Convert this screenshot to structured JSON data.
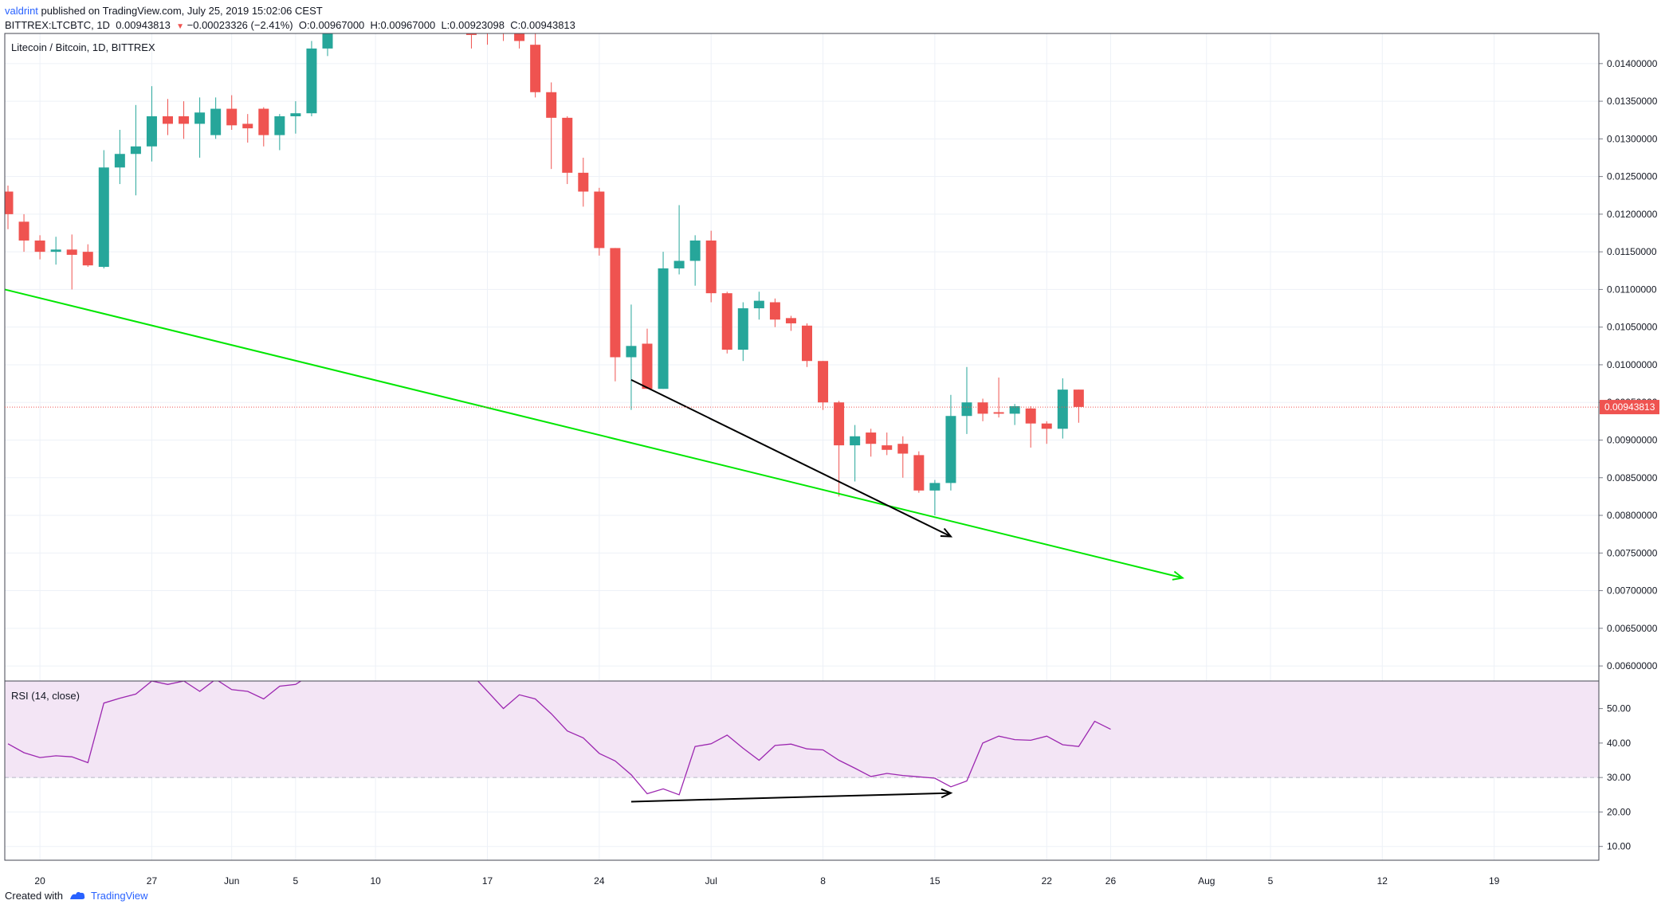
{
  "header": {
    "author": "valdrint",
    "published": "published on TradingView.com, July 25, 2019 15:02:06 CEST",
    "symbol": "BITTREX:LTCBTC, 1D",
    "last_price": "0.00943813",
    "change_icon": "down-triangle-icon",
    "change": "−0.00023326 (−2.41%)",
    "ohlc_o": "O:0.00967000",
    "ohlc_h": "H:0.00967000",
    "ohlc_l": "L:0.00923098",
    "ohlc_c": "C:0.00943813"
  },
  "footer": {
    "created_with": "Created with",
    "brand": "TradingView"
  },
  "colors": {
    "up": "#26a69a",
    "down": "#ef5350",
    "trendline": "#00e600",
    "arrow": "#000000",
    "rsi_line": "#9c27b0",
    "rsi_band": "#f3e5f5",
    "grid": "#edf1f7",
    "price_line": "#ef5350"
  },
  "chart_data": [
    {
      "type": "candlestick",
      "title": "Litecoin / Bitcoin, 1D, BITTREX",
      "ylim": [
        0.0058,
        0.0144
      ],
      "y_ticks": [
        "0.01400000",
        "0.01350000",
        "0.01300000",
        "0.01250000",
        "0.01200000",
        "0.01150000",
        "0.01100000",
        "0.01050000",
        "0.01000000",
        "0.00950000",
        "0.00900000",
        "0.00850000",
        "0.00800000",
        "0.00750000",
        "0.00700000",
        "0.00650000",
        "0.00600000"
      ],
      "x_ticks": [
        "20",
        "27",
        "Jun",
        "5",
        "10",
        "17",
        "24",
        "Jul",
        "8",
        "15",
        "22",
        "26",
        "Aug",
        "5",
        "12",
        "19"
      ],
      "last_price_label": "0.00943813",
      "candles": [
        {
          "date": "2019-05-18",
          "o": 0.0123,
          "h": 0.01238,
          "l": 0.0118,
          "c": 0.012
        },
        {
          "date": "2019-05-19",
          "o": 0.0119,
          "h": 0.012,
          "l": 0.0115,
          "c": 0.01165
        },
        {
          "date": "2019-05-20",
          "o": 0.01165,
          "h": 0.01172,
          "l": 0.0114,
          "c": 0.0115
        },
        {
          "date": "2019-05-21",
          "o": 0.0115,
          "h": 0.0117,
          "l": 0.01133,
          "c": 0.01153
        },
        {
          "date": "2019-05-22",
          "o": 0.01153,
          "h": 0.01173,
          "l": 0.011,
          "c": 0.01146
        },
        {
          "date": "2019-05-23",
          "o": 0.0115,
          "h": 0.0116,
          "l": 0.0113,
          "c": 0.01132
        },
        {
          "date": "2019-05-24",
          "o": 0.0113,
          "h": 0.01285,
          "l": 0.01128,
          "c": 0.01262
        },
        {
          "date": "2019-05-25",
          "o": 0.01262,
          "h": 0.01312,
          "l": 0.0124,
          "c": 0.0128
        },
        {
          "date": "2019-05-26",
          "o": 0.0128,
          "h": 0.01345,
          "l": 0.01225,
          "c": 0.0129
        },
        {
          "date": "2019-05-27",
          "o": 0.0129,
          "h": 0.0137,
          "l": 0.0127,
          "c": 0.0133
        },
        {
          "date": "2019-05-28",
          "o": 0.0133,
          "h": 0.01353,
          "l": 0.01305,
          "c": 0.0132
        },
        {
          "date": "2019-05-29",
          "o": 0.0133,
          "h": 0.0135,
          "l": 0.013,
          "c": 0.0132
        },
        {
          "date": "2019-05-30",
          "o": 0.0132,
          "h": 0.01355,
          "l": 0.01275,
          "c": 0.01335
        },
        {
          "date": "2019-05-31",
          "o": 0.01305,
          "h": 0.01355,
          "l": 0.013,
          "c": 0.0134
        },
        {
          "date": "2019-06-01",
          "o": 0.0134,
          "h": 0.01358,
          "l": 0.01312,
          "c": 0.01318
        },
        {
          "date": "2019-06-02",
          "o": 0.0132,
          "h": 0.01333,
          "l": 0.01295,
          "c": 0.01314
        },
        {
          "date": "2019-06-03",
          "o": 0.0134,
          "h": 0.01342,
          "l": 0.0129,
          "c": 0.01305
        },
        {
          "date": "2019-06-04",
          "o": 0.01305,
          "h": 0.01333,
          "l": 0.01285,
          "c": 0.0133
        },
        {
          "date": "2019-06-05",
          "o": 0.0133,
          "h": 0.0135,
          "l": 0.01307,
          "c": 0.01334
        },
        {
          "date": "2019-06-06",
          "o": 0.01334,
          "h": 0.0143,
          "l": 0.0133,
          "c": 0.0142
        },
        {
          "date": "2019-06-07",
          "o": 0.0142,
          "h": 0.01445,
          "l": 0.0141,
          "c": 0.01445
        },
        {
          "date": "2019-06-16",
          "o": 0.01445,
          "h": 0.01445,
          "l": 0.0142,
          "c": 0.01438
        },
        {
          "date": "2019-06-17",
          "o": 0.01445,
          "h": 0.01445,
          "l": 0.01425,
          "c": 0.0144
        },
        {
          "date": "2019-06-18",
          "o": 0.01445,
          "h": 0.01445,
          "l": 0.0143,
          "c": 0.0144
        },
        {
          "date": "2019-06-19",
          "o": 0.01445,
          "h": 0.01445,
          "l": 0.0142,
          "c": 0.0143
        },
        {
          "date": "2019-06-20",
          "o": 0.01425,
          "h": 0.0144,
          "l": 0.01355,
          "c": 0.01362
        },
        {
          "date": "2019-06-21",
          "o": 0.01362,
          "h": 0.01375,
          "l": 0.0126,
          "c": 0.01328
        },
        {
          "date": "2019-06-22",
          "o": 0.01328,
          "h": 0.0133,
          "l": 0.0124,
          "c": 0.01255
        },
        {
          "date": "2019-06-23",
          "o": 0.01255,
          "h": 0.01275,
          "l": 0.0121,
          "c": 0.0123
        },
        {
          "date": "2019-06-24",
          "o": 0.0123,
          "h": 0.01235,
          "l": 0.01145,
          "c": 0.01155
        },
        {
          "date": "2019-06-25",
          "o": 0.01155,
          "h": 0.01155,
          "l": 0.00978,
          "c": 0.0101
        },
        {
          "date": "2019-06-26",
          "o": 0.0101,
          "h": 0.0108,
          "l": 0.0094,
          "c": 0.01025
        },
        {
          "date": "2019-06-27",
          "o": 0.01028,
          "h": 0.01048,
          "l": 0.00968,
          "c": 0.00968
        },
        {
          "date": "2019-06-28",
          "o": 0.00968,
          "h": 0.0115,
          "l": 0.00968,
          "c": 0.01128
        },
        {
          "date": "2019-06-29",
          "o": 0.01128,
          "h": 0.01212,
          "l": 0.0112,
          "c": 0.01138
        },
        {
          "date": "2019-06-30",
          "o": 0.01138,
          "h": 0.01172,
          "l": 0.01105,
          "c": 0.01165
        },
        {
          "date": "2019-07-01",
          "o": 0.01165,
          "h": 0.01178,
          "l": 0.01083,
          "c": 0.01095
        },
        {
          "date": "2019-07-02",
          "o": 0.01095,
          "h": 0.01097,
          "l": 0.01015,
          "c": 0.0102
        },
        {
          "date": "2019-07-03",
          "o": 0.0102,
          "h": 0.01083,
          "l": 0.01005,
          "c": 0.01075
        },
        {
          "date": "2019-07-04",
          "o": 0.01075,
          "h": 0.01097,
          "l": 0.0106,
          "c": 0.01085
        },
        {
          "date": "2019-07-05",
          "o": 0.01083,
          "h": 0.01088,
          "l": 0.0105,
          "c": 0.0106
        },
        {
          "date": "2019-07-06",
          "o": 0.01062,
          "h": 0.01065,
          "l": 0.01045,
          "c": 0.01055
        },
        {
          "date": "2019-07-07",
          "o": 0.01052,
          "h": 0.01055,
          "l": 0.00997,
          "c": 0.01005
        },
        {
          "date": "2019-07-08",
          "o": 0.01005,
          "h": 0.01005,
          "l": 0.0094,
          "c": 0.0095
        },
        {
          "date": "2019-07-09",
          "o": 0.0095,
          "h": 0.00952,
          "l": 0.00825,
          "c": 0.00893
        },
        {
          "date": "2019-07-10",
          "o": 0.00893,
          "h": 0.0092,
          "l": 0.00845,
          "c": 0.00905
        },
        {
          "date": "2019-07-11",
          "o": 0.0091,
          "h": 0.00915,
          "l": 0.00878,
          "c": 0.00895
        },
        {
          "date": "2019-07-12",
          "o": 0.00893,
          "h": 0.0091,
          "l": 0.0088,
          "c": 0.00887
        },
        {
          "date": "2019-07-13",
          "o": 0.00895,
          "h": 0.00905,
          "l": 0.0085,
          "c": 0.00882
        },
        {
          "date": "2019-07-14",
          "o": 0.0088,
          "h": 0.00885,
          "l": 0.0083,
          "c": 0.00833
        },
        {
          "date": "2019-07-15",
          "o": 0.00833,
          "h": 0.00847,
          "l": 0.008,
          "c": 0.00843
        },
        {
          "date": "2019-07-16",
          "o": 0.00843,
          "h": 0.0096,
          "l": 0.00833,
          "c": 0.00932
        },
        {
          "date": "2019-07-17",
          "o": 0.00932,
          "h": 0.00997,
          "l": 0.00908,
          "c": 0.0095
        },
        {
          "date": "2019-07-18",
          "o": 0.0095,
          "h": 0.00955,
          "l": 0.00925,
          "c": 0.00935
        },
        {
          "date": "2019-07-19",
          "o": 0.00937,
          "h": 0.00983,
          "l": 0.0093,
          "c": 0.00935
        },
        {
          "date": "2019-07-20",
          "o": 0.00935,
          "h": 0.00948,
          "l": 0.0092,
          "c": 0.00945
        },
        {
          "date": "2019-07-21",
          "o": 0.00942,
          "h": 0.00945,
          "l": 0.0089,
          "c": 0.00922
        },
        {
          "date": "2019-07-22",
          "o": 0.00922,
          "h": 0.00925,
          "l": 0.00895,
          "c": 0.00915
        },
        {
          "date": "2019-07-23",
          "o": 0.00915,
          "h": 0.00982,
          "l": 0.00902,
          "c": 0.00967
        },
        {
          "date": "2019-07-24",
          "o": 0.00967,
          "h": 0.00967,
          "l": 0.00923,
          "c": 0.00944
        }
      ]
    },
    {
      "type": "line",
      "title": "RSI (14, close)",
      "ylim": [
        6,
        58
      ],
      "band": [
        30,
        70
      ],
      "y_ticks": [
        "50.00",
        "40.00",
        "30.00",
        "20.00",
        "10.00"
      ],
      "points": [
        {
          "date": "2019-05-18",
          "v": 39.8
        },
        {
          "date": "2019-05-19",
          "v": 37.2
        },
        {
          "date": "2019-05-20",
          "v": 35.8
        },
        {
          "date": "2019-05-21",
          "v": 36.3
        },
        {
          "date": "2019-05-22",
          "v": 36.0
        },
        {
          "date": "2019-05-23",
          "v": 34.3
        },
        {
          "date": "2019-05-24",
          "v": 51.6
        },
        {
          "date": "2019-05-25",
          "v": 53.0
        },
        {
          "date": "2019-05-26",
          "v": 54.2
        },
        {
          "date": "2019-05-27",
          "v": 58.0
        },
        {
          "date": "2019-05-28",
          "v": 57.0
        },
        {
          "date": "2019-05-29",
          "v": 58.0
        },
        {
          "date": "2019-05-30",
          "v": 55.0
        },
        {
          "date": "2019-05-31",
          "v": 58.5
        },
        {
          "date": "2019-06-01",
          "v": 55.5
        },
        {
          "date": "2019-06-02",
          "v": 55.0
        },
        {
          "date": "2019-06-03",
          "v": 52.8
        },
        {
          "date": "2019-06-04",
          "v": 56.5
        },
        {
          "date": "2019-06-05",
          "v": 57.0
        },
        {
          "date": "2019-06-06",
          "v": 60.0
        },
        {
          "date": "2019-06-16",
          "v": 60.0
        },
        {
          "date": "2019-06-18",
          "v": 50.0
        },
        {
          "date": "2019-06-19",
          "v": 54.0
        },
        {
          "date": "2019-06-20",
          "v": 52.8
        },
        {
          "date": "2019-06-21",
          "v": 48.5
        },
        {
          "date": "2019-06-22",
          "v": 43.5
        },
        {
          "date": "2019-06-23",
          "v": 41.5
        },
        {
          "date": "2019-06-24",
          "v": 37.0
        },
        {
          "date": "2019-06-25",
          "v": 34.8
        },
        {
          "date": "2019-06-26",
          "v": 30.8
        },
        {
          "date": "2019-06-27",
          "v": 25.3
        },
        {
          "date": "2019-06-28",
          "v": 26.7
        },
        {
          "date": "2019-06-29",
          "v": 25.0
        },
        {
          "date": "2019-06-30",
          "v": 39.0
        },
        {
          "date": "2019-07-01",
          "v": 39.8
        },
        {
          "date": "2019-07-02",
          "v": 42.3
        },
        {
          "date": "2019-07-03",
          "v": 38.5
        },
        {
          "date": "2019-07-04",
          "v": 35.0
        },
        {
          "date": "2019-07-05",
          "v": 39.3
        },
        {
          "date": "2019-07-06",
          "v": 39.7
        },
        {
          "date": "2019-07-07",
          "v": 38.3
        },
        {
          "date": "2019-07-08",
          "v": 38.0
        },
        {
          "date": "2019-07-09",
          "v": 35.0
        },
        {
          "date": "2019-07-10",
          "v": 32.7
        },
        {
          "date": "2019-07-11",
          "v": 30.3
        },
        {
          "date": "2019-07-12",
          "v": 31.2
        },
        {
          "date": "2019-07-13",
          "v": 30.6
        },
        {
          "date": "2019-07-14",
          "v": 30.2
        },
        {
          "date": "2019-07-15",
          "v": 29.8
        },
        {
          "date": "2019-07-16",
          "v": 27.3
        },
        {
          "date": "2019-07-17",
          "v": 29.0
        },
        {
          "date": "2019-07-18",
          "v": 40.0
        },
        {
          "date": "2019-07-19",
          "v": 42.0
        },
        {
          "date": "2019-07-20",
          "v": 41.0
        },
        {
          "date": "2019-07-21",
          "v": 40.8
        },
        {
          "date": "2019-07-22",
          "v": 42.0
        },
        {
          "date": "2019-07-23",
          "v": 39.5
        },
        {
          "date": "2019-07-24",
          "v": 39.0
        },
        {
          "date": "2019-07-25",
          "v": 46.3
        },
        {
          "date": "2019-07-26",
          "v": 44.0
        }
      ]
    }
  ],
  "drawings": {
    "price_trendline": {
      "from": {
        "date": "2019-05-18",
        "v": 0.011
      },
      "to": {
        "date": "2019-07-30",
        "v": 0.00717
      }
    },
    "price_arrow": {
      "from": {
        "date": "2019-06-26",
        "v": 0.0098
      },
      "to": {
        "date": "2019-07-16",
        "v": 0.00772
      }
    },
    "rsi_arrow": {
      "from": {
        "date": "2019-06-26",
        "v": 23.0
      },
      "to": {
        "date": "2019-07-16",
        "v": 25.5
      }
    }
  }
}
